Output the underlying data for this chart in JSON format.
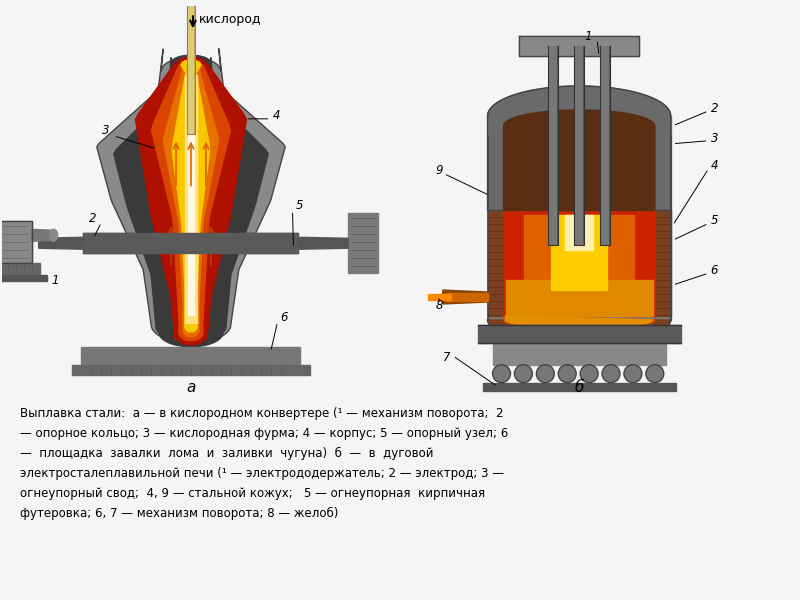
{
  "bg_color": "#f5f5f5",
  "fig_width": 8.0,
  "fig_height": 6.0,
  "dpi": 100,
  "caption_line1": "Выплавка стали:  а — в кислородном конвертере (¹ — механизм поворота;  2",
  "caption_line2": "— опорное кольцо; 3 — кислородная фурма; 4 — корпус; 5 — опорный узел; 6",
  "caption_line3": "—  площадка  завалки  лома  и  заливки  чугуна)  б  —  в  дуговой",
  "caption_line4": "электросталеплавильной печи (¹ — электрододержатель; 2 — электрод; 3 —",
  "caption_line5": "огнеупорный свод;  4, 9 — стальной кожух;   5 — огнеупорная  кирпичная",
  "caption_line6": "футеровка; 6, 7 — механизм поворота; 8 — желоб)",
  "label_a": "а",
  "label_b": "б",
  "oxygen_label": "кислород"
}
